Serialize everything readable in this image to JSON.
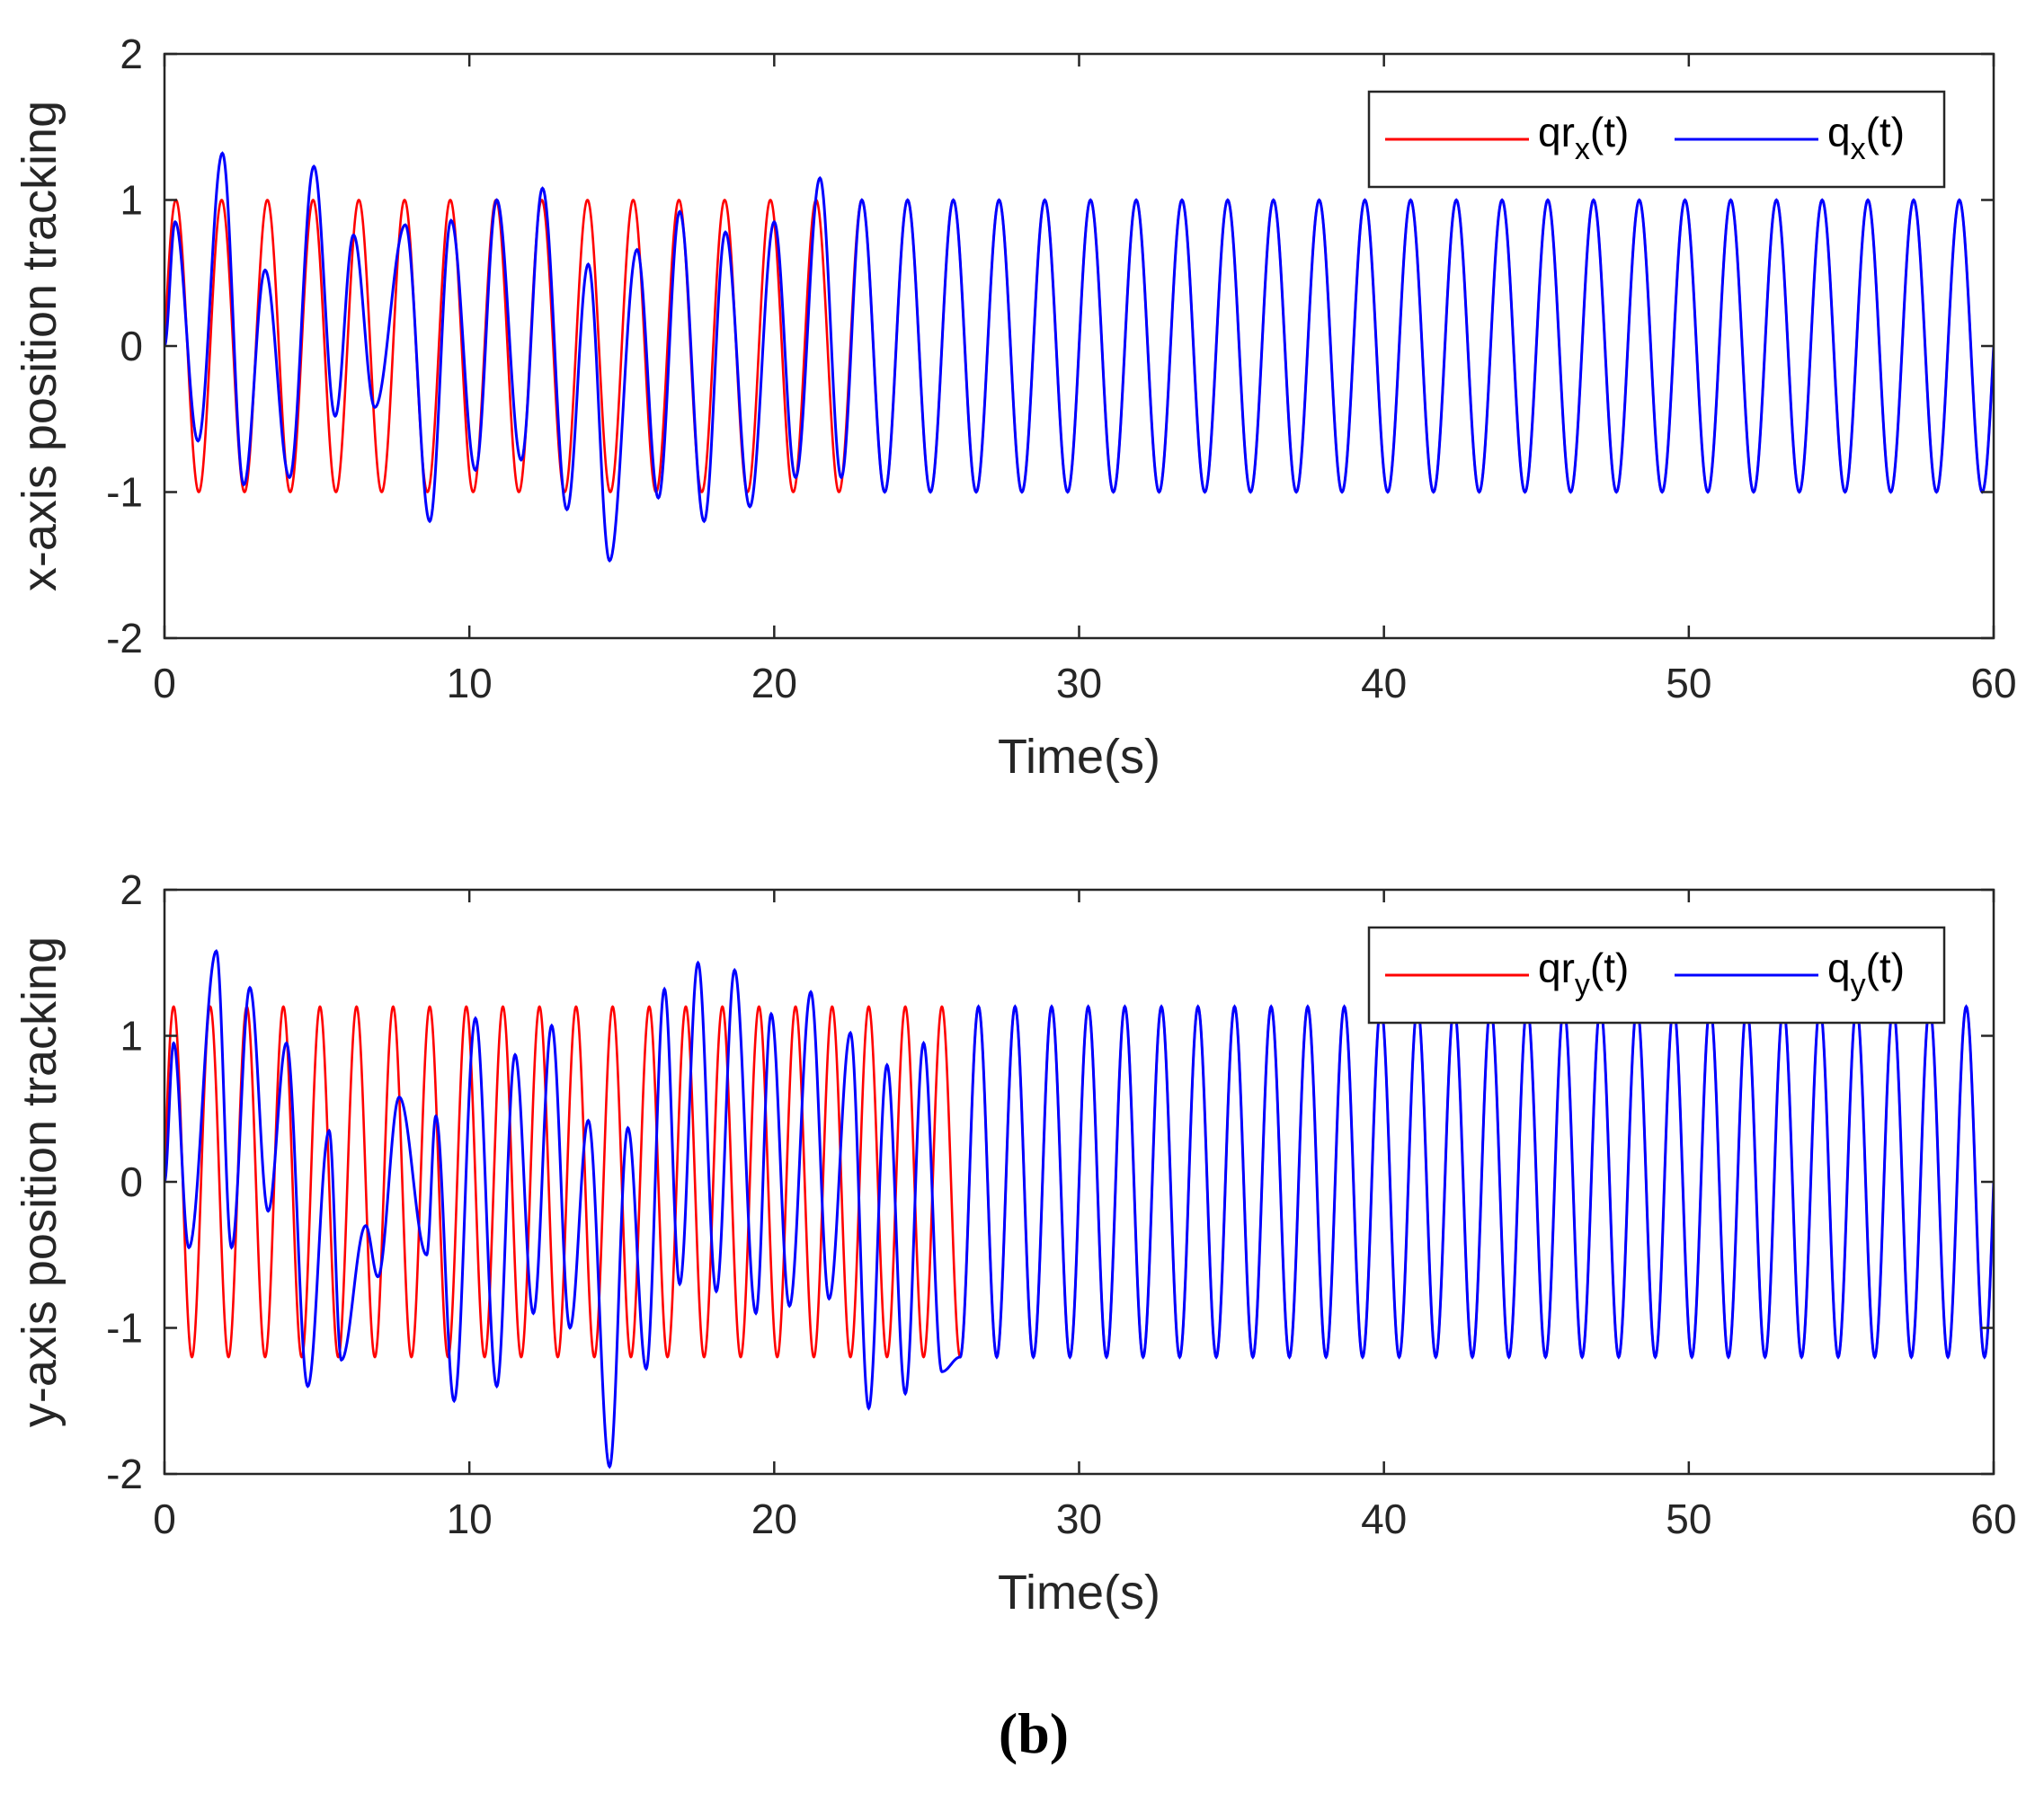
{
  "figure_label": "(b)",
  "colors": {
    "reference": "#ff0000",
    "actual": "#0000ff",
    "axes": "#262626"
  },
  "chart_data": [
    {
      "type": "line",
      "xlabel": "Time(s)",
      "ylabel": "x-axis position tracking",
      "xlim": [
        0,
        60
      ],
      "ylim": [
        -2,
        2
      ],
      "xticks": [
        0,
        10,
        20,
        30,
        40,
        50,
        60
      ],
      "yticks": [
        -2,
        -1,
        0,
        1,
        2
      ],
      "legend_position": "top-right",
      "reference": {
        "amplitude": 1.0,
        "period_s": 1.5
      },
      "series": [
        {
          "name": "qr_x(t)",
          "legend_base": "qr",
          "legend_sub": "x",
          "legend_tail": "(t)",
          "role": "reference",
          "color": "#ff0000"
        },
        {
          "name": "q_x(t)",
          "legend_base": "q",
          "legend_sub": "x",
          "legend_tail": "(t)",
          "role": "actual",
          "color": "#0000ff",
          "converged_after_s": 22,
          "transient_peaks": [
            {
              "t": 0.35,
              "v": 0.85
            },
            {
              "t": 1.1,
              "v": -0.65
            },
            {
              "t": 1.9,
              "v": 1.32
            },
            {
              "t": 2.6,
              "v": -0.95
            },
            {
              "t": 3.3,
              "v": 0.52
            },
            {
              "t": 4.1,
              "v": -0.9
            },
            {
              "t": 4.9,
              "v": 1.23
            },
            {
              "t": 5.6,
              "v": -0.48
            },
            {
              "t": 6.2,
              "v": 0.76
            },
            {
              "t": 6.9,
              "v": -0.42
            },
            {
              "t": 7.9,
              "v": 0.83
            },
            {
              "t": 8.7,
              "v": -1.2
            },
            {
              "t": 9.4,
              "v": 0.86
            },
            {
              "t": 10.2,
              "v": -0.85
            },
            {
              "t": 10.9,
              "v": 1.0
            },
            {
              "t": 11.7,
              "v": -0.78
            },
            {
              "t": 12.4,
              "v": 1.08
            },
            {
              "t": 13.2,
              "v": -1.12
            },
            {
              "t": 13.9,
              "v": 0.56
            },
            {
              "t": 14.6,
              "v": -1.47
            },
            {
              "t": 15.5,
              "v": 0.66
            },
            {
              "t": 16.2,
              "v": -1.04
            },
            {
              "t": 16.9,
              "v": 0.92
            },
            {
              "t": 17.7,
              "v": -1.2
            },
            {
              "t": 18.4,
              "v": 0.78
            },
            {
              "t": 19.2,
              "v": -1.1
            },
            {
              "t": 20.0,
              "v": 0.85
            },
            {
              "t": 20.7,
              "v": -0.9
            },
            {
              "t": 21.5,
              "v": 1.15
            },
            {
              "t": 22.2,
              "v": -0.9
            }
          ]
        }
      ]
    },
    {
      "type": "line",
      "xlabel": "Time(s)",
      "ylabel": "y-axis position tracking",
      "xlim": [
        0,
        60
      ],
      "ylim": [
        -2,
        2
      ],
      "xticks": [
        0,
        10,
        20,
        30,
        40,
        50,
        60
      ],
      "yticks": [
        -2,
        -1,
        0,
        1,
        2
      ],
      "legend_position": "top-right",
      "reference": {
        "amplitude": 1.2,
        "period_s": 1.2
      },
      "series": [
        {
          "name": "qr_y(t)",
          "legend_base": "qr",
          "legend_sub": "y",
          "legend_tail": "(t)",
          "role": "reference",
          "color": "#ff0000"
        },
        {
          "name": "q_y(t)",
          "legend_base": "q",
          "legend_sub": "y",
          "legend_tail": "(t)",
          "role": "actual",
          "color": "#0000ff",
          "converged_after_s": 25.8,
          "transient_peaks": [
            {
              "t": 0.3,
              "v": 0.95
            },
            {
              "t": 0.8,
              "v": -0.45
            },
            {
              "t": 1.7,
              "v": 1.58
            },
            {
              "t": 2.2,
              "v": -0.45
            },
            {
              "t": 2.8,
              "v": 1.33
            },
            {
              "t": 3.4,
              "v": -0.2
            },
            {
              "t": 4.0,
              "v": 0.95
            },
            {
              "t": 4.7,
              "v": -1.4
            },
            {
              "t": 5.4,
              "v": 0.35
            },
            {
              "t": 5.8,
              "v": -1.22
            },
            {
              "t": 6.6,
              "v": -0.3
            },
            {
              "t": 7.0,
              "v": -0.65
            },
            {
              "t": 7.7,
              "v": 0.58
            },
            {
              "t": 8.6,
              "v": -0.5
            },
            {
              "t": 8.9,
              "v": 0.45
            },
            {
              "t": 9.5,
              "v": -1.5
            },
            {
              "t": 10.2,
              "v": 1.12
            },
            {
              "t": 10.9,
              "v": -1.4
            },
            {
              "t": 11.5,
              "v": 0.87
            },
            {
              "t": 12.1,
              "v": -0.9
            },
            {
              "t": 12.7,
              "v": 1.07
            },
            {
              "t": 13.3,
              "v": -1.0
            },
            {
              "t": 13.9,
              "v": 0.42
            },
            {
              "t": 14.6,
              "v": -1.95
            },
            {
              "t": 15.2,
              "v": 0.37
            },
            {
              "t": 15.8,
              "v": -1.28
            },
            {
              "t": 16.4,
              "v": 1.32
            },
            {
              "t": 16.9,
              "v": -0.7
            },
            {
              "t": 17.5,
              "v": 1.5
            },
            {
              "t": 18.1,
              "v": -0.75
            },
            {
              "t": 18.7,
              "v": 1.45
            },
            {
              "t": 19.4,
              "v": -0.9
            },
            {
              "t": 19.9,
              "v": 1.15
            },
            {
              "t": 20.5,
              "v": -0.85
            },
            {
              "t": 21.2,
              "v": 1.3
            },
            {
              "t": 21.8,
              "v": -0.8
            },
            {
              "t": 22.5,
              "v": 1.02
            },
            {
              "t": 23.1,
              "v": -1.55
            },
            {
              "t": 23.7,
              "v": 0.8
            },
            {
              "t": 24.3,
              "v": -1.45
            },
            {
              "t": 24.9,
              "v": 0.95
            },
            {
              "t": 25.5,
              "v": -1.3
            }
          ]
        }
      ]
    }
  ]
}
